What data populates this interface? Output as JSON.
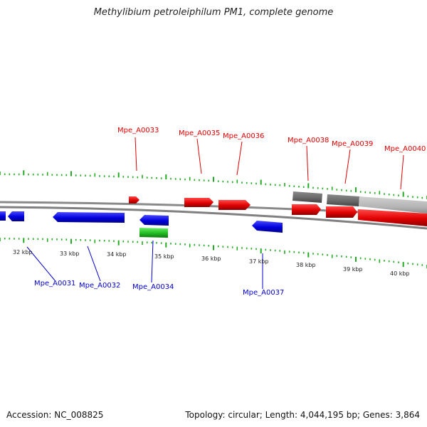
{
  "header": {
    "title": "Methylibium petroleiphilum PM1, complete genome"
  },
  "footer": {
    "accession": "Accession: NC_008825",
    "summary": "Topology: circular; Length: 4,044,195 bp; Genes: 3,864"
  },
  "colors": {
    "forward_gene": "#e00000",
    "reverse_gene": "#0000dd",
    "rna_gene": "#22bb22",
    "repeat_dark": "#666666",
    "repeat_light": "#b5b5b5",
    "backbone": "#808080",
    "ticks": "#22aa22",
    "forward_label": "#e10000",
    "reverse_label": "#0000cc"
  },
  "scale_labels": [
    "32 kbp",
    "33 kbp",
    "34 kbp",
    "35 kbp",
    "36 kbp",
    "37 kbp",
    "38 kbp",
    "39 kbp",
    "40 kbp"
  ],
  "genes": {
    "forward_labels": [
      "Mpe_A0033",
      "Mpe_A0035",
      "Mpe_A0036",
      "Mpe_A0038",
      "Mpe_A0039",
      "Mpe_A0040"
    ],
    "reverse_labels": [
      "Mpe_A0031",
      "Mpe_A0032",
      "Mpe_A0034",
      "Mpe_A0037"
    ]
  }
}
